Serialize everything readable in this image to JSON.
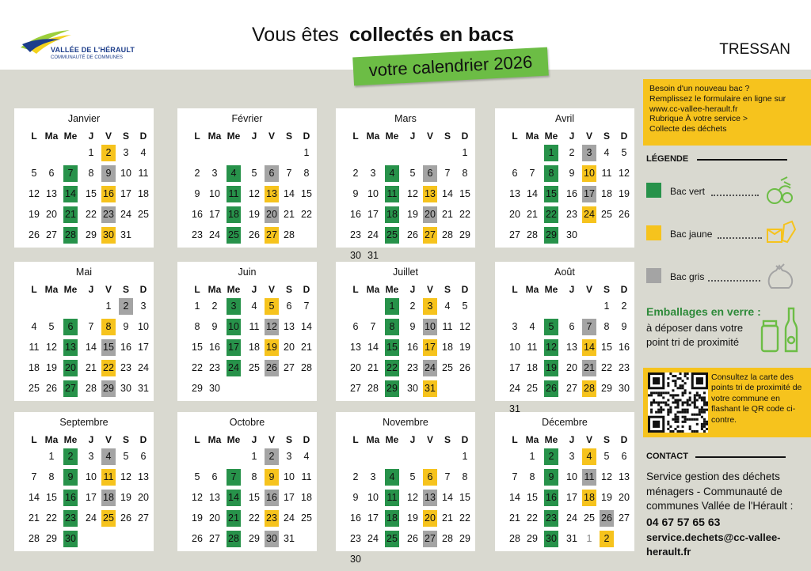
{
  "header": {
    "logo_name": "VALLÉE DE L'HÉRAULT",
    "logo_sub": "COMMUNAUTÉ DE COMMUNES",
    "title_pre": "Vous êtes",
    "title_bold": "collectés en bacs",
    "title_post": ":",
    "subtitle": "votre calendrier 2026",
    "commune": "TRESSAN"
  },
  "day_headers": [
    "L",
    "Ma",
    "Me",
    "J",
    "V",
    "S",
    "D"
  ],
  "months": [
    {
      "name": "Janvier",
      "start": 3,
      "days": 31,
      "g": [
        7,
        14,
        21,
        28
      ],
      "y": [
        2,
        16,
        30
      ],
      "s": [
        9,
        23
      ]
    },
    {
      "name": "Février",
      "start": 6,
      "days": 28,
      "g": [
        4,
        11,
        18,
        25
      ],
      "y": [
        13,
        27
      ],
      "s": [
        6,
        20
      ]
    },
    {
      "name": "Mars",
      "start": 6,
      "days": 31,
      "g": [
        4,
        11,
        18,
        25
      ],
      "y": [
        13,
        27
      ],
      "s": [
        6,
        20
      ]
    },
    {
      "name": "Avril",
      "start": 2,
      "days": 30,
      "g": [
        1,
        8,
        15,
        22,
        29
      ],
      "y": [
        10,
        24
      ],
      "s": [
        3,
        17
      ]
    },
    {
      "name": "Mai",
      "start": 4,
      "days": 31,
      "g": [
        6,
        13,
        20,
        27
      ],
      "y": [
        8,
        22
      ],
      "s": [
        2,
        15,
        29
      ]
    },
    {
      "name": "Juin",
      "start": 0,
      "days": 30,
      "g": [
        3,
        10,
        17,
        24
      ],
      "y": [
        5,
        19
      ],
      "s": [
        12,
        26
      ]
    },
    {
      "name": "Juillet",
      "start": 2,
      "days": 31,
      "g": [
        1,
        8,
        15,
        22,
        29
      ],
      "y": [
        3,
        17,
        31
      ],
      "s": [
        10,
        24
      ]
    },
    {
      "name": "Août",
      "start": 5,
      "days": 31,
      "g": [
        5,
        12,
        19,
        26
      ],
      "y": [
        14,
        28
      ],
      "s": [
        7,
        21
      ]
    },
    {
      "name": "Septembre",
      "start": 1,
      "days": 30,
      "g": [
        2,
        9,
        16,
        23,
        30
      ],
      "y": [
        11,
        25
      ],
      "s": [
        4,
        18
      ]
    },
    {
      "name": "Octobre",
      "start": 3,
      "days": 31,
      "g": [
        7,
        14,
        21,
        28
      ],
      "y": [
        9,
        23
      ],
      "s": [
        2,
        16,
        30
      ]
    },
    {
      "name": "Novembre",
      "start": 6,
      "days": 30,
      "g": [
        4,
        11,
        18,
        25
      ],
      "y": [
        6,
        20
      ],
      "s": [
        13,
        27
      ]
    },
    {
      "name": "Décembre",
      "start": 1,
      "days": 31,
      "g": [
        2,
        9,
        16,
        23,
        30
      ],
      "y": [
        4,
        18
      ],
      "s": [
        11,
        26
      ],
      "next": [
        1,
        2
      ],
      "next_y": [
        2
      ]
    }
  ],
  "sidebar": {
    "bac_info": [
      "Besoin d'un nouveau bac ?",
      "Remplissez le formulaire en ligne sur",
      "www.cc-vallee-herault.fr",
      "Rubrique À votre service >",
      "Collecte des déchets"
    ],
    "legend_title": "LÉGENDE",
    "legend": [
      {
        "label": "Bac vert",
        "color": "#27924a"
      },
      {
        "label": "Bac jaune",
        "color": "#f6c31d"
      },
      {
        "label": "Bac gris",
        "color": "#a4a4a4"
      }
    ],
    "glass_title": "Emballages en verre :",
    "glass_text": "à déposer dans votre point tri de proximité",
    "qr_text": "Consultez la carte des points tri de proximité de votre commune en flashant le QR code ci-contre.",
    "contact_title": "CONTACT",
    "contact_text": "Service gestion des déchets ménagers - Communauté de communes Vallée de l'Hérault :",
    "phone": "04 67 57 65 63",
    "email": "service.dechets@cc-vallee-herault.fr"
  },
  "colors": {
    "green": "#27924a",
    "yellow": "#f6c31d",
    "grey": "#a4a4a4",
    "title_green": "#6cbd45"
  }
}
